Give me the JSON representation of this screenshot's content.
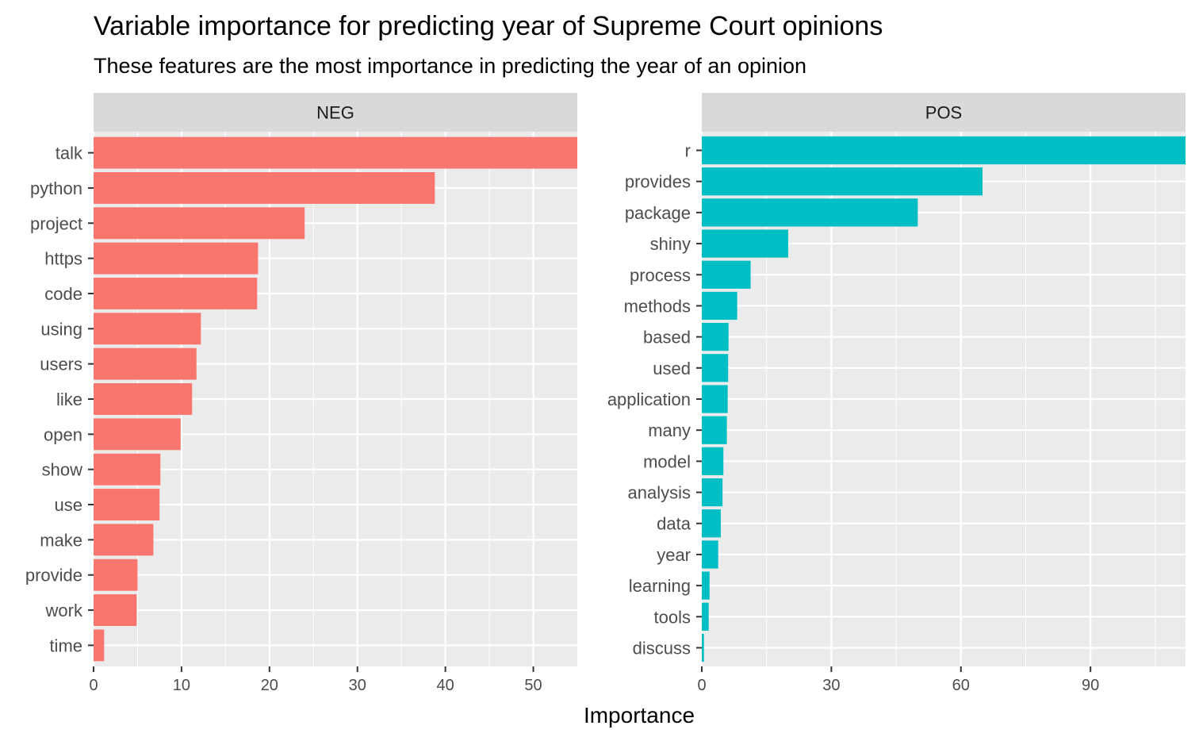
{
  "chart_data": {
    "type": "bar",
    "orientation": "horizontal",
    "title": "Variable importance for predicting year of Supreme Court opinions",
    "subtitle": "These features are the most importance in predicting the year of an opinion",
    "xlabel": "Importance",
    "grid": true,
    "panels": [
      {
        "name": "NEG",
        "color": "#F8766D",
        "xlim": [
          0,
          55
        ],
        "ticks": [
          0,
          10,
          20,
          30,
          40,
          50
        ],
        "categories": [
          "talk",
          "python",
          "project",
          "https",
          "code",
          "using",
          "users",
          "like",
          "open",
          "show",
          "use",
          "make",
          "provide",
          "work",
          "time"
        ],
        "values": [
          55,
          38.8,
          24,
          18.7,
          18.6,
          12.2,
          11.7,
          11.2,
          9.9,
          7.6,
          7.5,
          6.8,
          5.0,
          4.9,
          1.2
        ]
      },
      {
        "name": "POS",
        "color": "#00BFC4",
        "xlim": [
          0,
          112
        ],
        "ticks": [
          0,
          30,
          60,
          90
        ],
        "categories": [
          "r",
          "provides",
          "package",
          "shiny",
          "process",
          "methods",
          "based",
          "used",
          "application",
          "many",
          "model",
          "analysis",
          "data",
          "year",
          "learning",
          "tools",
          "discuss"
        ],
        "values": [
          112,
          65,
          50,
          20,
          11.3,
          8.2,
          6.2,
          6.1,
          6.0,
          5.8,
          5.0,
          4.8,
          4.4,
          3.8,
          1.8,
          1.6,
          0.5
        ]
      }
    ]
  }
}
